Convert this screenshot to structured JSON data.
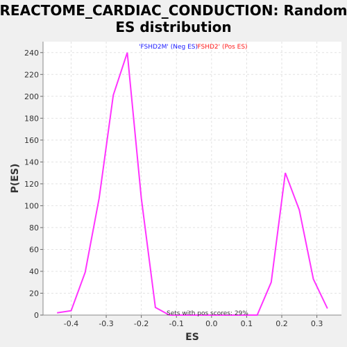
{
  "chart_data": {
    "type": "line",
    "title_line1": "REACTOME_CARDIAC_CONDUCTION: Random",
    "title_line2": "ES distribution",
    "xlabel": "ES",
    "ylabel": "P(ES)",
    "xlim": [
      -0.48,
      0.37
    ],
    "ylim": [
      0,
      250
    ],
    "xticks": [
      -0.4,
      -0.3,
      -0.2,
      -0.1,
      0.0,
      0.1,
      0.2,
      0.3
    ],
    "xtick_labels": [
      "-0.4",
      "-0.3",
      "-0.2",
      "-0.1",
      "0.0",
      "0.1",
      "0.2",
      "0.3"
    ],
    "yticks": [
      0,
      20,
      40,
      60,
      80,
      100,
      120,
      140,
      160,
      180,
      200,
      220,
      240
    ],
    "ytick_labels": [
      "0",
      "20",
      "40",
      "60",
      "80",
      "100",
      "120",
      "140",
      "160",
      "180",
      "200",
      "220",
      "240"
    ],
    "grid": true,
    "series_color": "#ff33ff",
    "neg_color": "#1a1aff",
    "pos_color": "#ff1a1a",
    "annotation_neg": "'FSHD2M' (Neg ES)",
    "annotation_pos": "'FSHD2' (Pos ES)",
    "footer": "Sets with pos scores: 29%",
    "series": [
      {
        "x": [
          -0.44,
          -0.4,
          -0.36,
          -0.32,
          -0.28,
          -0.24,
          -0.2,
          -0.16,
          -0.12,
          -0.08,
          -0.04,
          0.0,
          0.04,
          0.08,
          0.13,
          0.17,
          0.21,
          0.25,
          0.29,
          0.33
        ],
        "y": [
          2,
          4,
          39,
          107,
          201,
          240,
          107,
          7,
          0,
          0,
          0,
          0,
          0,
          0,
          0,
          30,
          130,
          96,
          33,
          6
        ]
      }
    ]
  }
}
